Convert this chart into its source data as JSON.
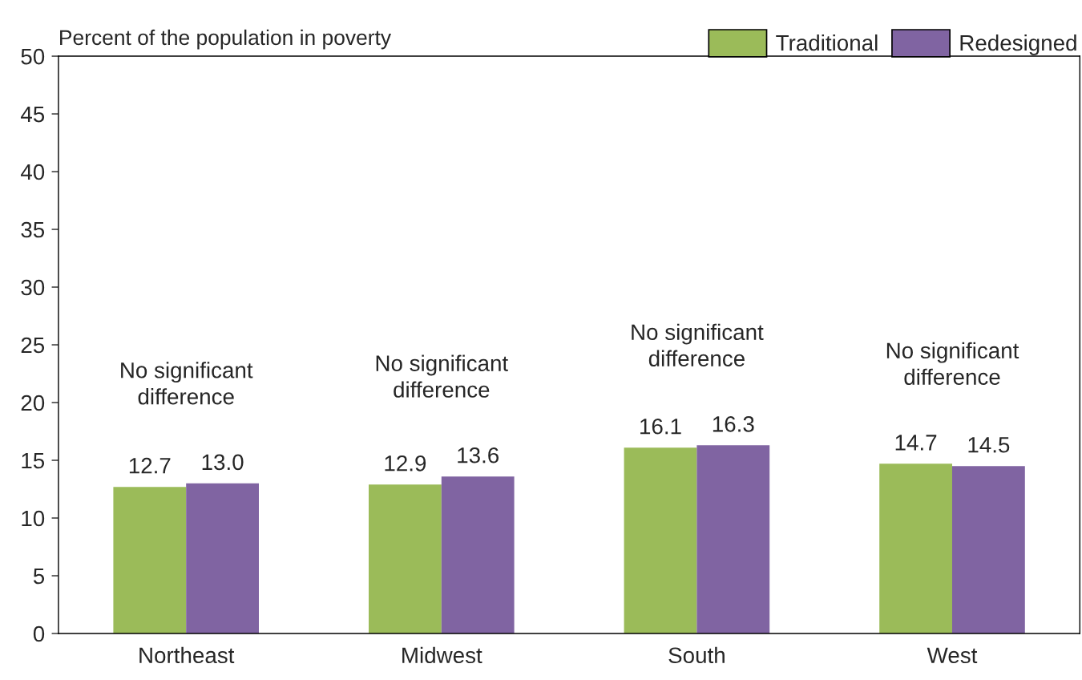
{
  "chart_data": {
    "type": "bar",
    "ylabel": "Percent of the population in poverty",
    "categories": [
      "Northeast",
      "Midwest",
      "South",
      "West"
    ],
    "series": [
      {
        "name": "Traditional",
        "color": "#9bbb59",
        "values": [
          12.7,
          12.9,
          16.1,
          14.7
        ],
        "value_labels": [
          "12.7",
          "12.9",
          "16.1",
          "14.7"
        ]
      },
      {
        "name": "Redesigned",
        "color": "#8064a2",
        "values": [
          13.0,
          13.6,
          16.3,
          14.5
        ],
        "value_labels": [
          "13.0",
          "13.6",
          "16.3",
          "14.5"
        ]
      }
    ],
    "ylim": [
      0,
      50
    ],
    "yticks": [
      0,
      5,
      10,
      15,
      20,
      25,
      30,
      35,
      40,
      45,
      50
    ],
    "grid": false,
    "legend": "top right",
    "annotations": [
      "No significant\ndifference",
      "No significant\ndifference",
      "No significant\ndifference",
      "No significant\ndifference"
    ]
  }
}
